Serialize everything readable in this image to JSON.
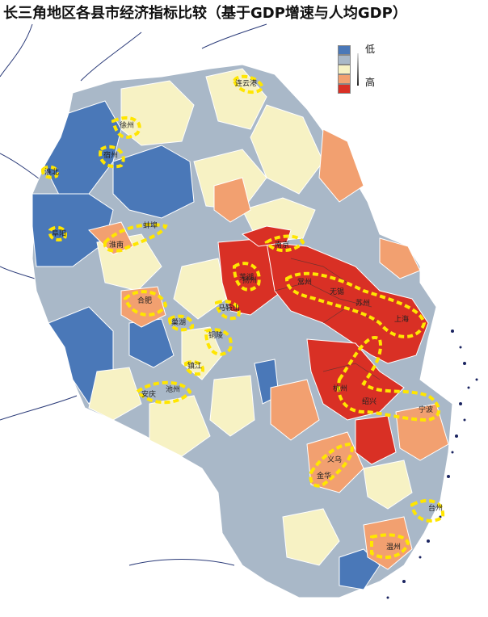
{
  "title": "长三角地区各县市经济指标比较（基于GDP增速与人均GDP）",
  "legend": {
    "low_label": "低",
    "high_label": "高",
    "classes": [
      "#4a78b8",
      "#a9b8c8",
      "#f7f2c4",
      "#f2a070",
      "#d93025"
    ]
  },
  "highlight_color": "#ffe600",
  "city_labels": [
    "连云港",
    "徐州",
    "宿州",
    "淮北",
    "阜阳",
    "淮南",
    "蚌埠",
    "合肥",
    "巢湖",
    "马鞍山",
    "芜湖",
    "铜陵",
    "安庆",
    "池州",
    "南京",
    "扬州",
    "镇江",
    "常州",
    "无锡",
    "苏州",
    "上海",
    "杭州",
    "绍兴",
    "宁波",
    "金华",
    "义乌",
    "台州",
    "温州"
  ]
}
